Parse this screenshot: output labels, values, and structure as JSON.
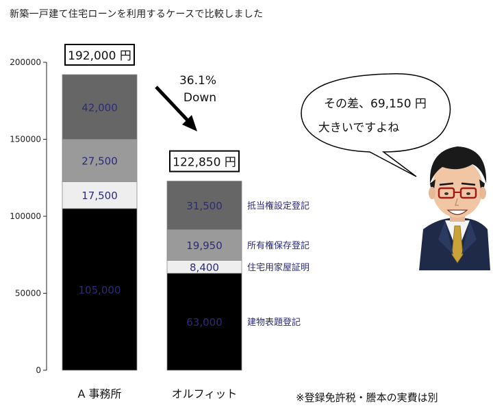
{
  "title": "新築一戸建て住宅ローンを利用するケースで比較しました",
  "footnote": "※登録免許税・謄本の実費は別",
  "chart_data": {
    "type": "bar",
    "stacked": true,
    "categories": [
      "A 事務所",
      "オルフィット"
    ],
    "series": [
      {
        "name": "建物表題登記",
        "values": [
          105000,
          63000
        ],
        "labels": [
          "105,000",
          "63,000"
        ],
        "color": "#000000",
        "text_color": "#2b2b7a"
      },
      {
        "name": "住宅用家屋証明",
        "values": [
          17500,
          8400
        ],
        "labels": [
          "17,500",
          "8,400"
        ],
        "color": "#eeeeee",
        "text_color": "#2b2b7a"
      },
      {
        "name": "所有権保存登記",
        "values": [
          27500,
          19950
        ],
        "labels": [
          "27,500",
          "19,950"
        ],
        "color": "#9a9a9a",
        "text_color": "#2b2b7a"
      },
      {
        "name": "抵当権設定登記",
        "values": [
          42000,
          31500
        ],
        "labels": [
          "42,000",
          "31,500"
        ],
        "color": "#666666",
        "text_color": "#2b2b7a"
      }
    ],
    "totals": [
      "192,000 円",
      "122,850 円"
    ],
    "ylim": [
      0,
      200000
    ],
    "yticks": [
      0,
      50000,
      100000,
      150000,
      200000
    ],
    "ytick_labels": [
      "0",
      "50000",
      "100000",
      "150000",
      "200000"
    ],
    "grid": false,
    "legend": "right of second bar",
    "annotation_change": [
      "36.1%",
      "Down"
    ],
    "speech_bubble": [
      "その差、69,150 円",
      "大きいですよね"
    ]
  }
}
